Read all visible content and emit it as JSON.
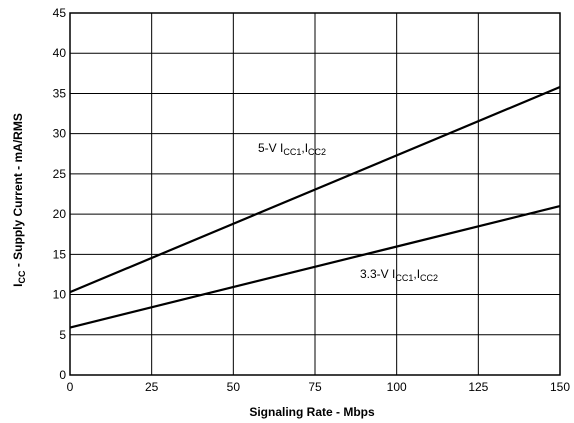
{
  "chart_data": {
    "type": "line",
    "xlabel": "Signaling Rate - Mbps",
    "ylabel": {
      "main": "I",
      "sub": "CC",
      "rest": " - Supply Current - mA/RMS"
    },
    "xlim": [
      0,
      150
    ],
    "ylim": [
      0,
      45
    ],
    "x_ticks": [
      "0",
      "25",
      "50",
      "75",
      "100",
      "125",
      "150"
    ],
    "y_ticks": [
      "0",
      "5",
      "10",
      "15",
      "20",
      "25",
      "30",
      "35",
      "40",
      "45"
    ],
    "grid": true,
    "series": [
      {
        "x": [
          0,
          150
        ],
        "values": [
          10.3,
          35.8
        ],
        "label": {
          "prefix": "5-V I",
          "sub1": "CC1",
          "mid": ",I",
          "sub2": "CC2"
        }
      },
      {
        "x": [
          0,
          150
        ],
        "values": [
          5.9,
          21.0
        ],
        "label": {
          "prefix": "3.3-V I",
          "sub1": "CC1",
          "mid": ",I",
          "sub2": "CC2"
        }
      }
    ]
  }
}
